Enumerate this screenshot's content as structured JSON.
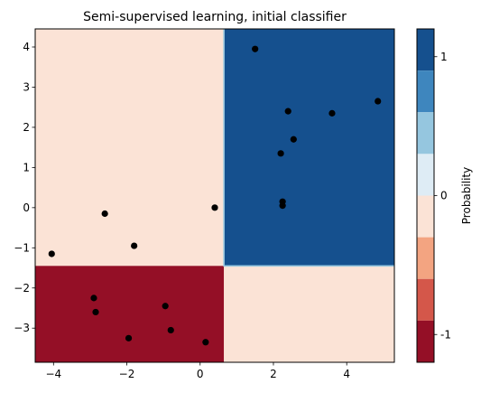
{
  "chart_data": {
    "type": "scatter",
    "title": "Semi-supervised learning, initial classifier",
    "xlabel": "",
    "ylabel": "",
    "xlim": [
      -4.5,
      5.3
    ],
    "ylim": [
      -3.85,
      4.45
    ],
    "xticks": [
      -4,
      -2,
      0,
      2,
      4
    ],
    "yticks": [
      -3,
      -2,
      -1,
      0,
      1,
      2,
      3,
      4
    ],
    "grid": false,
    "points": [
      {
        "x": 1.5,
        "y": 3.95
      },
      {
        "x": 4.85,
        "y": 2.65
      },
      {
        "x": 2.4,
        "y": 2.4
      },
      {
        "x": 3.6,
        "y": 2.35
      },
      {
        "x": 2.55,
        "y": 1.7
      },
      {
        "x": 2.2,
        "y": 1.35
      },
      {
        "x": 2.25,
        "y": 0.15
      },
      {
        "x": 2.25,
        "y": 0.05
      },
      {
        "x": 0.4,
        "y": 0.0
      },
      {
        "x": -2.6,
        "y": -0.15
      },
      {
        "x": -1.8,
        "y": -0.95
      },
      {
        "x": -4.05,
        "y": -1.15
      },
      {
        "x": -2.9,
        "y": -2.25
      },
      {
        "x": -2.85,
        "y": -2.6
      },
      {
        "x": -0.95,
        "y": -2.45
      },
      {
        "x": -0.8,
        "y": -3.05
      },
      {
        "x": -1.95,
        "y": -3.25
      },
      {
        "x": 0.15,
        "y": -3.35
      }
    ],
    "decision_regions": [
      {
        "x": [
          -4.5,
          0.65
        ],
        "y": [
          -1.45,
          4.45
        ],
        "color": "#fbe3d6"
      },
      {
        "x": [
          0.65,
          5.3
        ],
        "y": [
          -1.45,
          4.45
        ],
        "color": "#15508e"
      },
      {
        "x": [
          -4.5,
          0.65
        ],
        "y": [
          -3.85,
          -1.45
        ],
        "color": "#940f26"
      },
      {
        "x": [
          0.65,
          5.3
        ],
        "y": [
          -3.85,
          -1.45
        ],
        "color": "#fbe3d6"
      }
    ],
    "boundary_color": "#95c6df",
    "point_color": "#000000"
  },
  "colorbar": {
    "label": "Probability",
    "ticks": [
      {
        "value": 1,
        "label": "1"
      },
      {
        "value": 0,
        "label": "0"
      },
      {
        "value": -1,
        "label": "-1"
      }
    ],
    "range": [
      -1.2,
      1.2
    ],
    "levels": [
      {
        "from": 0.9,
        "to": 1.2,
        "color": "#15508e"
      },
      {
        "from": 0.6,
        "to": 0.9,
        "color": "#3e86be"
      },
      {
        "from": 0.3,
        "to": 0.6,
        "color": "#95c6df"
      },
      {
        "from": 0.0,
        "to": 0.3,
        "color": "#deecf5"
      },
      {
        "from": -0.3,
        "to": 0.0,
        "color": "#fbe3d6"
      },
      {
        "from": -0.6,
        "to": -0.3,
        "color": "#f3a481"
      },
      {
        "from": -0.9,
        "to": -0.6,
        "color": "#d4574a"
      },
      {
        "from": -1.2,
        "to": -0.9,
        "color": "#940f26"
      }
    ]
  }
}
